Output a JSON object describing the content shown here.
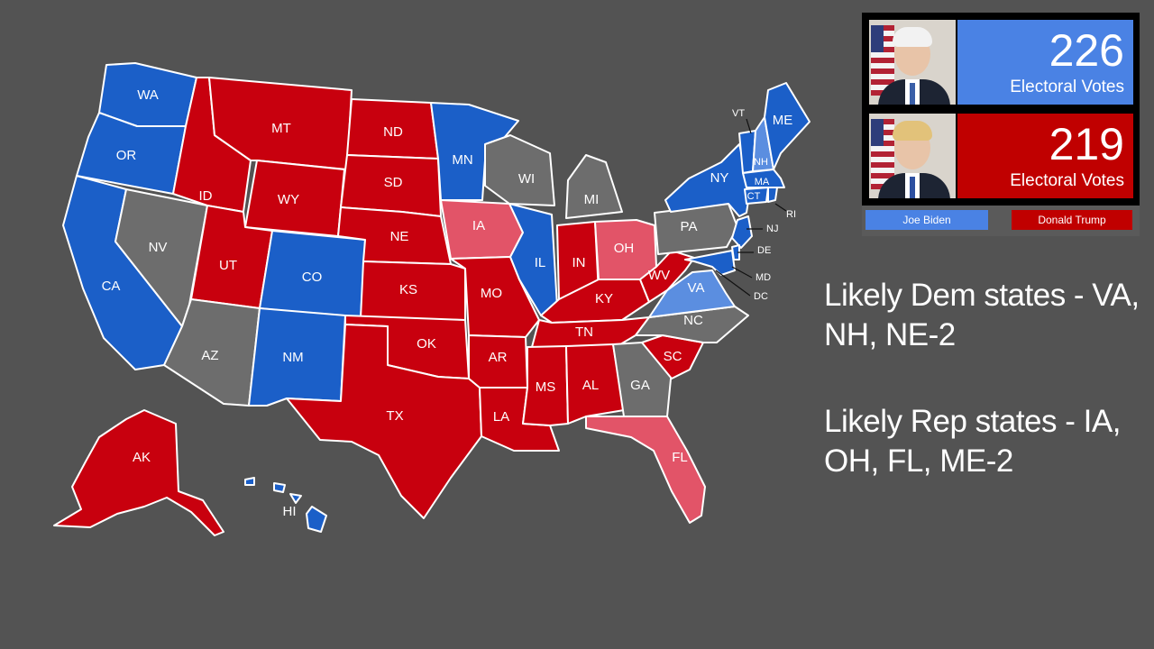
{
  "colors": {
    "safe_dem": "#1b5fc8",
    "likely_dem": "#5b8ee0",
    "safe_rep": "#c8000e",
    "likely_rep": "#e25468",
    "tossup": "#6d6d6d",
    "background": "#535353"
  },
  "states": {
    "WA": {
      "label": "WA",
      "status": "safe_dem"
    },
    "OR": {
      "label": "OR",
      "status": "safe_dem"
    },
    "CA": {
      "label": "CA",
      "status": "safe_dem"
    },
    "NV": {
      "label": "NV",
      "status": "tossup"
    },
    "ID": {
      "label": "ID",
      "status": "safe_rep"
    },
    "MT": {
      "label": "MT",
      "status": "safe_rep"
    },
    "WY": {
      "label": "WY",
      "status": "safe_rep"
    },
    "UT": {
      "label": "UT",
      "status": "safe_rep"
    },
    "AZ": {
      "label": "AZ",
      "status": "tossup"
    },
    "CO": {
      "label": "CO",
      "status": "safe_dem"
    },
    "NM": {
      "label": "NM",
      "status": "safe_dem"
    },
    "ND": {
      "label": "ND",
      "status": "safe_rep"
    },
    "SD": {
      "label": "SD",
      "status": "safe_rep"
    },
    "NE": {
      "label": "NE",
      "status": "safe_rep"
    },
    "KS": {
      "label": "KS",
      "status": "safe_rep"
    },
    "OK": {
      "label": "OK",
      "status": "safe_rep"
    },
    "TX": {
      "label": "TX",
      "status": "safe_rep"
    },
    "MN": {
      "label": "MN",
      "status": "safe_dem"
    },
    "IA": {
      "label": "IA",
      "status": "likely_rep"
    },
    "MO": {
      "label": "MO",
      "status": "safe_rep"
    },
    "AR": {
      "label": "AR",
      "status": "safe_rep"
    },
    "LA": {
      "label": "LA",
      "status": "safe_rep"
    },
    "WI": {
      "label": "WI",
      "status": "tossup"
    },
    "IL": {
      "label": "IL",
      "status": "safe_dem"
    },
    "MI": {
      "label": "MI",
      "status": "tossup"
    },
    "IN": {
      "label": "IN",
      "status": "safe_rep"
    },
    "OH": {
      "label": "OH",
      "status": "likely_rep"
    },
    "KY": {
      "label": "KY",
      "status": "safe_rep"
    },
    "TN": {
      "label": "TN",
      "status": "safe_rep"
    },
    "MS": {
      "label": "MS",
      "status": "safe_rep"
    },
    "AL": {
      "label": "AL",
      "status": "safe_rep"
    },
    "GA": {
      "label": "GA",
      "status": "tossup"
    },
    "FL": {
      "label": "FL",
      "status": "likely_rep"
    },
    "SC": {
      "label": "SC",
      "status": "safe_rep"
    },
    "NC": {
      "label": "NC",
      "status": "tossup"
    },
    "VA": {
      "label": "VA",
      "status": "likely_dem"
    },
    "WV": {
      "label": "WV",
      "status": "safe_rep"
    },
    "PA": {
      "label": "PA",
      "status": "tossup"
    },
    "NY": {
      "label": "NY",
      "status": "safe_dem"
    },
    "VT": {
      "label": "VT",
      "status": "safe_dem"
    },
    "NH": {
      "label": "NH",
      "status": "likely_dem"
    },
    "ME": {
      "label": "ME",
      "status": "safe_dem"
    },
    "MA": {
      "label": "MA",
      "status": "safe_dem"
    },
    "CT": {
      "label": "CT",
      "status": "safe_dem"
    },
    "RI": {
      "label": "RI",
      "status": "safe_dem"
    },
    "NJ": {
      "label": "NJ",
      "status": "safe_dem"
    },
    "DE": {
      "label": "DE",
      "status": "safe_dem"
    },
    "MD": {
      "label": "MD",
      "status": "safe_dem"
    },
    "DC": {
      "label": "DC",
      "status": "safe_dem"
    },
    "AK": {
      "label": "AK",
      "status": "safe_rep"
    },
    "HI": {
      "label": "HI",
      "status": "safe_dem"
    }
  },
  "scoreboard": {
    "dem": {
      "votes": "226",
      "votes_label": "Electoral Votes",
      "name": "Joe Biden",
      "color": "#4a82e4"
    },
    "rep": {
      "votes": "219",
      "votes_label": "Electoral Votes",
      "name": "Donald Trump",
      "color": "#c00000"
    }
  },
  "notes": {
    "likely_dem_line1": "Likely Dem states - VA,",
    "likely_dem_line2": "NH, NE-2",
    "likely_rep_line1": "Likely Rep states - IA,",
    "likely_rep_line2": "OH, FL, ME-2"
  }
}
